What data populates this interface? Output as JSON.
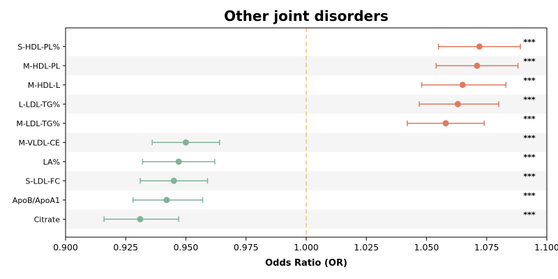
{
  "chart_data": {
    "type": "forest",
    "title": "Other joint disorders",
    "xlabel": "Odds Ratio (OR)",
    "xlim": [
      0.9,
      1.1
    ],
    "xticks": [
      "0.900",
      "0.925",
      "0.950",
      "0.975",
      "1.000",
      "1.025",
      "1.050",
      "1.075",
      "1.100"
    ],
    "reference_line": 1.0,
    "reference_color": "#f0c27b",
    "colors": {
      "positive": "#e07a5f",
      "negative": "#81b29a"
    },
    "grid": false,
    "rows": [
      {
        "label": "S-HDL-PL%",
        "or": 1.072,
        "lo": 1.055,
        "hi": 1.089,
        "sig": "***"
      },
      {
        "label": "M-HDL-PL",
        "or": 1.071,
        "lo": 1.054,
        "hi": 1.088,
        "sig": "***"
      },
      {
        "label": "M-HDL-L",
        "or": 1.065,
        "lo": 1.048,
        "hi": 1.083,
        "sig": "***"
      },
      {
        "label": "L-LDL-TG%",
        "or": 1.063,
        "lo": 1.047,
        "hi": 1.08,
        "sig": "***"
      },
      {
        "label": "M-LDL-TG%",
        "or": 1.058,
        "lo": 1.042,
        "hi": 1.074,
        "sig": "***"
      },
      {
        "label": "M-VLDL-CE",
        "or": 0.95,
        "lo": 0.936,
        "hi": 0.964,
        "sig": "***"
      },
      {
        "label": "LA%",
        "or": 0.947,
        "lo": 0.932,
        "hi": 0.962,
        "sig": "***"
      },
      {
        "label": "S-LDL-FC",
        "or": 0.945,
        "lo": 0.931,
        "hi": 0.959,
        "sig": "***"
      },
      {
        "label": "ApoB/ApoA1",
        "or": 0.942,
        "lo": 0.928,
        "hi": 0.957,
        "sig": "***"
      },
      {
        "label": "Citrate",
        "or": 0.931,
        "lo": 0.916,
        "hi": 0.947,
        "sig": "***"
      }
    ]
  }
}
